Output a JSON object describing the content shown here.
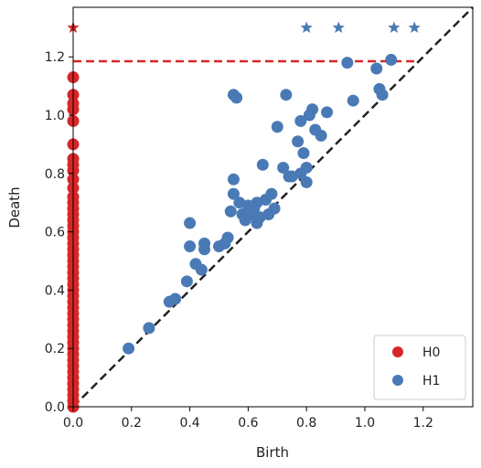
{
  "chart_data": {
    "type": "scatter",
    "title": "",
    "xlabel": "Birth",
    "ylabel": "Death",
    "xlim": [
      0.0,
      1.37
    ],
    "ylim": [
      0.0,
      1.37
    ],
    "xticks": [
      "0.0",
      "0.2",
      "0.4",
      "0.6",
      "0.8",
      "1.0",
      "1.2"
    ],
    "yticks": [
      "0.0",
      "0.2",
      "0.4",
      "0.6",
      "0.8",
      "1.0",
      "1.2"
    ],
    "grid": false,
    "legend_position": "bottom-right",
    "infinity_level": 1.3,
    "infinity_line_y": 1.185,
    "diagonal": true,
    "series": [
      {
        "name": "H0",
        "color": "#d62728",
        "marker": "circle",
        "points": [
          [
            0,
            0.0
          ],
          [
            0,
            0.02
          ],
          [
            0,
            0.04
          ],
          [
            0,
            0.06
          ],
          [
            0,
            0.08
          ],
          [
            0,
            0.1
          ],
          [
            0,
            0.12
          ],
          [
            0,
            0.14
          ],
          [
            0,
            0.16
          ],
          [
            0,
            0.18
          ],
          [
            0,
            0.2
          ],
          [
            0,
            0.22
          ],
          [
            0,
            0.24
          ],
          [
            0,
            0.26
          ],
          [
            0,
            0.28
          ],
          [
            0,
            0.3
          ],
          [
            0,
            0.32
          ],
          [
            0,
            0.34
          ],
          [
            0,
            0.36
          ],
          [
            0,
            0.38
          ],
          [
            0,
            0.4
          ],
          [
            0,
            0.42
          ],
          [
            0,
            0.44
          ],
          [
            0,
            0.46
          ],
          [
            0,
            0.48
          ],
          [
            0,
            0.5
          ],
          [
            0,
            0.52
          ],
          [
            0,
            0.54
          ],
          [
            0,
            0.56
          ],
          [
            0,
            0.58
          ],
          [
            0,
            0.6
          ],
          [
            0,
            0.62
          ],
          [
            0,
            0.64
          ],
          [
            0,
            0.66
          ],
          [
            0,
            0.68
          ],
          [
            0,
            0.7
          ],
          [
            0,
            0.72
          ],
          [
            0,
            0.75
          ],
          [
            0,
            0.78
          ],
          [
            0,
            0.81
          ],
          [
            0,
            0.83
          ],
          [
            0,
            0.85
          ],
          [
            0,
            0.9
          ],
          [
            0,
            0.98
          ],
          [
            0,
            1.02
          ],
          [
            0,
            1.04
          ],
          [
            0,
            1.07
          ],
          [
            0,
            1.13
          ]
        ],
        "infinite": [
          [
            0,
            1.3
          ]
        ]
      },
      {
        "name": "H1",
        "color": "#4a7ab5",
        "marker": "circle",
        "points": [
          [
            0.19,
            0.2
          ],
          [
            0.26,
            0.27
          ],
          [
            0.33,
            0.36
          ],
          [
            0.35,
            0.37
          ],
          [
            0.39,
            0.43
          ],
          [
            0.4,
            0.63
          ],
          [
            0.4,
            0.55
          ],
          [
            0.42,
            0.49
          ],
          [
            0.44,
            0.47
          ],
          [
            0.45,
            0.56
          ],
          [
            0.45,
            0.54
          ],
          [
            0.5,
            0.55
          ],
          [
            0.52,
            0.56
          ],
          [
            0.53,
            0.58
          ],
          [
            0.54,
            0.67
          ],
          [
            0.55,
            0.73
          ],
          [
            0.55,
            0.78
          ],
          [
            0.55,
            1.07
          ],
          [
            0.56,
            1.06
          ],
          [
            0.57,
            0.7
          ],
          [
            0.58,
            0.66
          ],
          [
            0.59,
            0.64
          ],
          [
            0.6,
            0.69
          ],
          [
            0.61,
            0.66
          ],
          [
            0.62,
            0.68
          ],
          [
            0.63,
            0.63
          ],
          [
            0.63,
            0.7
          ],
          [
            0.64,
            0.65
          ],
          [
            0.65,
            0.83
          ],
          [
            0.66,
            0.71
          ],
          [
            0.67,
            0.66
          ],
          [
            0.68,
            0.73
          ],
          [
            0.69,
            0.68
          ],
          [
            0.7,
            0.96
          ],
          [
            0.72,
            0.82
          ],
          [
            0.73,
            1.07
          ],
          [
            0.74,
            0.79
          ],
          [
            0.75,
            0.79
          ],
          [
            0.77,
            0.91
          ],
          [
            0.78,
            0.98
          ],
          [
            0.78,
            0.8
          ],
          [
            0.79,
            0.87
          ],
          [
            0.8,
            0.82
          ],
          [
            0.8,
            0.77
          ],
          [
            0.81,
            1.0
          ],
          [
            0.82,
            1.02
          ],
          [
            0.83,
            0.95
          ],
          [
            0.85,
            0.93
          ],
          [
            0.87,
            1.01
          ],
          [
            0.94,
            1.18
          ],
          [
            0.96,
            1.05
          ],
          [
            1.04,
            1.16
          ],
          [
            1.05,
            1.09
          ],
          [
            1.06,
            1.07
          ],
          [
            1.09,
            1.19
          ]
        ],
        "infinite": [
          [
            0.8,
            1.3
          ],
          [
            0.91,
            1.3
          ],
          [
            1.1,
            1.3
          ],
          [
            1.17,
            1.3
          ]
        ]
      }
    ]
  }
}
